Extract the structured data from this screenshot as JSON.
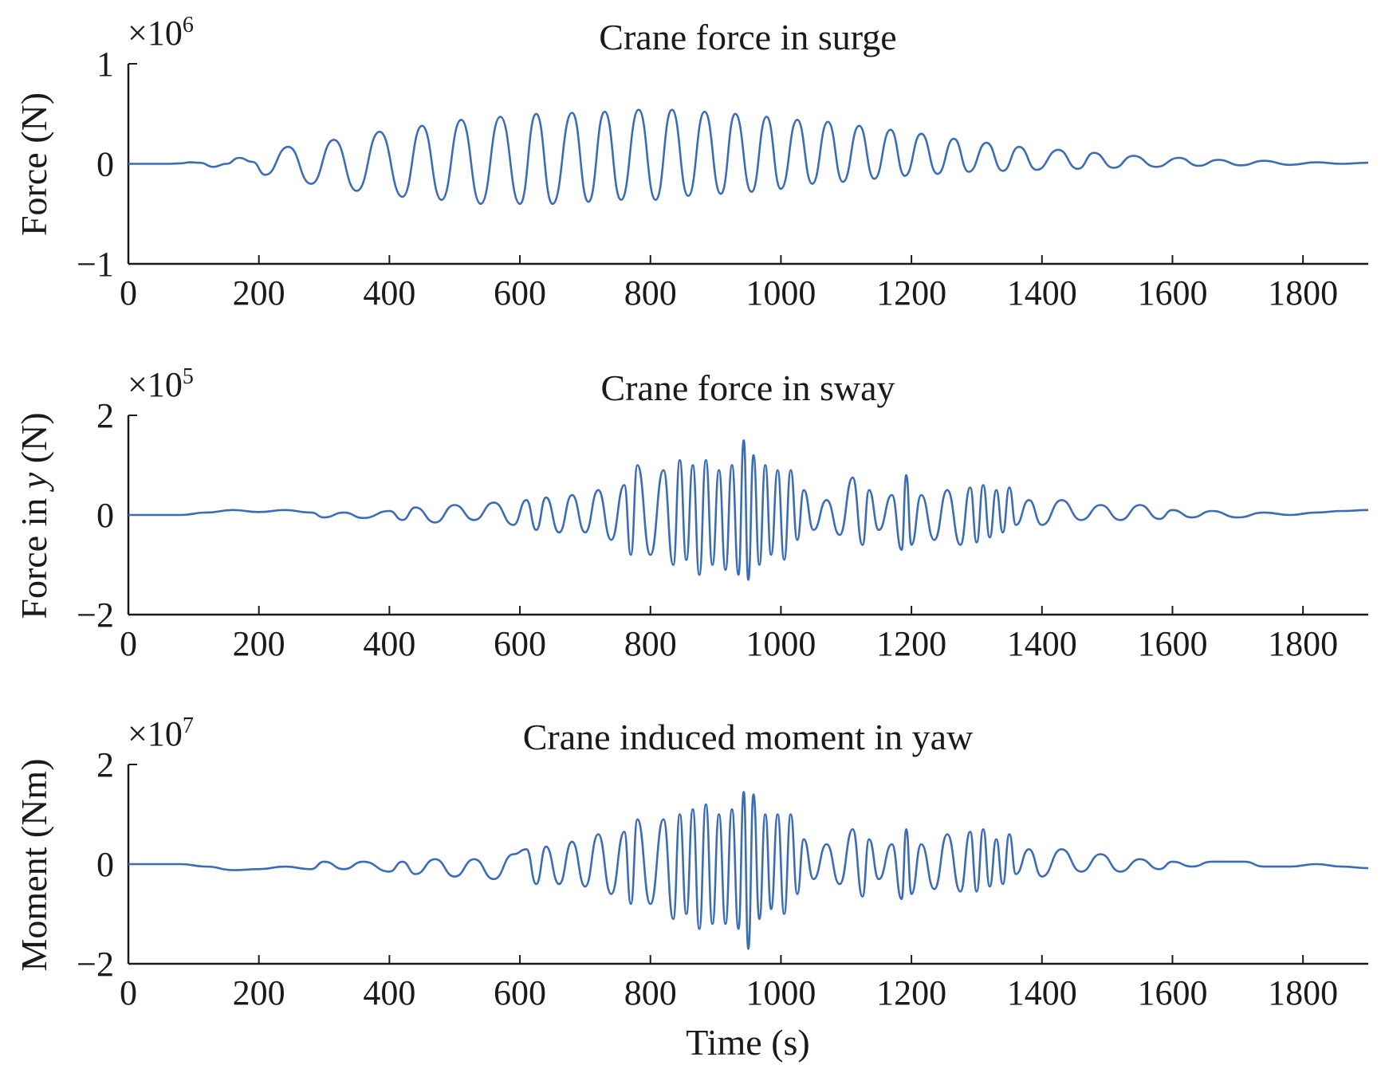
{
  "colors": {
    "series": "#3c6db4",
    "axis": "#1a1a1a"
  },
  "chart_data": [
    {
      "type": "line",
      "title": "Crane force in surge",
      "ylabel": "Force (N)",
      "xlabel": "",
      "multiplier_base": "×10",
      "multiplier_exp": "6",
      "xlim": [
        0,
        1900
      ],
      "ylim": [
        -1,
        1
      ],
      "xticks": [
        "0",
        "200",
        "400",
        "600",
        "800",
        "1000",
        "1200",
        "1400",
        "1600",
        "1800"
      ],
      "yticks": [
        "−1",
        "0",
        "1"
      ],
      "series": [
        {
          "x": [
            0,
            60,
            80,
            95,
            110,
            130,
            150,
            170,
            190,
            210,
            245,
            280,
            315,
            350,
            385,
            420,
            450,
            480,
            510,
            540,
            570,
            600,
            625,
            650,
            680,
            705,
            730,
            755,
            782,
            808,
            833,
            858,
            883,
            908,
            930,
            955,
            978,
            1000,
            1025,
            1048,
            1072,
            1095,
            1120,
            1143,
            1168,
            1190,
            1215,
            1240,
            1265,
            1288,
            1315,
            1340,
            1365,
            1392,
            1425,
            1455,
            1480,
            1510,
            1540,
            1575,
            1610,
            1640,
            1670,
            1705,
            1740,
            1780,
            1820,
            1860,
            1900
          ],
          "y": [
            0,
            0,
            0.005,
            0.015,
            0.01,
            -0.03,
            0,
            0.06,
            0.02,
            -0.11,
            0.17,
            -0.2,
            0.24,
            -0.27,
            0.32,
            -0.33,
            0.38,
            -0.36,
            0.44,
            -0.4,
            0.47,
            -0.4,
            0.5,
            -0.4,
            0.51,
            -0.38,
            0.52,
            -0.36,
            0.54,
            -0.36,
            0.54,
            -0.32,
            0.52,
            -0.3,
            0.5,
            -0.28,
            0.47,
            -0.25,
            0.44,
            -0.2,
            0.42,
            -0.18,
            0.38,
            -0.15,
            0.34,
            -0.12,
            0.3,
            -0.1,
            0.25,
            -0.08,
            0.21,
            -0.07,
            0.17,
            -0.06,
            0.14,
            -0.05,
            0.11,
            -0.04,
            0.08,
            -0.03,
            0.06,
            -0.02,
            0.04,
            -0.015,
            0.03,
            -0.01,
            0.015,
            0,
            0.01
          ]
        }
      ]
    },
    {
      "type": "line",
      "title": "Crane force in sway",
      "ylabel": "Force in y (N)",
      "xlabel": "",
      "multiplier_base": "×10",
      "multiplier_exp": "5",
      "xlim": [
        0,
        1900
      ],
      "ylim": [
        -2,
        2
      ],
      "xticks": [
        "0",
        "200",
        "400",
        "600",
        "800",
        "1000",
        "1200",
        "1400",
        "1600",
        "1800"
      ],
      "yticks": [
        "−2",
        "0",
        "2"
      ],
      "series": [
        {
          "x": [
            0,
            80,
            120,
            160,
            200,
            240,
            280,
            300,
            330,
            360,
            400,
            420,
            440,
            470,
            500,
            530,
            560,
            590,
            610,
            625,
            640,
            660,
            680,
            700,
            720,
            740,
            760,
            770,
            780,
            800,
            820,
            835,
            845,
            855,
            865,
            875,
            885,
            895,
            905,
            915,
            925,
            935,
            943,
            950,
            958,
            967,
            976,
            985,
            995,
            1005,
            1015,
            1025,
            1035,
            1050,
            1070,
            1090,
            1110,
            1125,
            1135,
            1150,
            1170,
            1185,
            1192,
            1200,
            1215,
            1235,
            1255,
            1275,
            1290,
            1300,
            1310,
            1320,
            1330,
            1340,
            1350,
            1360,
            1380,
            1400,
            1430,
            1460,
            1490,
            1520,
            1550,
            1580,
            1600,
            1630,
            1660,
            1700,
            1740,
            1780,
            1820,
            1860,
            1900
          ],
          "y": [
            0,
            0,
            0.05,
            0.1,
            0.06,
            0.1,
            0.05,
            -0.05,
            0.05,
            -0.06,
            0.08,
            -0.1,
            0.15,
            -0.15,
            0.2,
            -0.1,
            0.25,
            -0.2,
            0.3,
            -0.3,
            0.35,
            -0.35,
            0.4,
            -0.35,
            0.5,
            -0.5,
            0.6,
            -0.8,
            1.0,
            -0.8,
            0.9,
            -1.0,
            1.1,
            -0.9,
            1.0,
            -1.2,
            1.1,
            -1.0,
            0.9,
            -1.1,
            1.0,
            -1.2,
            1.5,
            -1.3,
            1.2,
            -1.0,
            1.0,
            -0.8,
            0.9,
            -0.9,
            0.9,
            -0.5,
            0.5,
            -0.3,
            0.3,
            -0.4,
            0.75,
            -0.6,
            0.5,
            -0.3,
            0.4,
            -0.7,
            0.8,
            -0.6,
            0.4,
            -0.5,
            0.5,
            -0.6,
            0.55,
            -0.55,
            0.6,
            -0.45,
            0.5,
            -0.35,
            0.55,
            -0.2,
            0.3,
            -0.2,
            0.3,
            -0.1,
            0.2,
            -0.1,
            0.2,
            -0.08,
            0.1,
            -0.05,
            0.08,
            -0.05,
            0.05,
            0,
            0.05,
            0.08,
            0.1
          ]
        }
      ]
    },
    {
      "type": "line",
      "title": "Crane induced moment in yaw",
      "ylabel": "Moment (Nm)",
      "xlabel": "Time (s)",
      "multiplier_base": "×10",
      "multiplier_exp": "7",
      "xlim": [
        0,
        1900
      ],
      "ylim": [
        -2,
        2
      ],
      "xticks": [
        "0",
        "200",
        "400",
        "600",
        "800",
        "1000",
        "1200",
        "1400",
        "1600",
        "1800"
      ],
      "yticks": [
        "−2",
        "0",
        "2"
      ],
      "series": [
        {
          "x": [
            0,
            80,
            120,
            160,
            200,
            240,
            280,
            300,
            330,
            360,
            400,
            420,
            440,
            470,
            500,
            530,
            560,
            590,
            610,
            625,
            640,
            660,
            680,
            700,
            720,
            740,
            760,
            770,
            780,
            800,
            820,
            835,
            845,
            855,
            865,
            875,
            885,
            895,
            905,
            915,
            925,
            935,
            943,
            950,
            958,
            967,
            976,
            985,
            995,
            1005,
            1015,
            1025,
            1035,
            1050,
            1070,
            1090,
            1110,
            1125,
            1135,
            1150,
            1170,
            1185,
            1192,
            1200,
            1215,
            1235,
            1255,
            1275,
            1290,
            1300,
            1310,
            1320,
            1330,
            1340,
            1350,
            1360,
            1380,
            1400,
            1430,
            1460,
            1490,
            1520,
            1550,
            1580,
            1600,
            1630,
            1660,
            1710,
            1740,
            1780,
            1820,
            1860,
            1900
          ],
          "y": [
            0,
            0,
            -0.05,
            -0.12,
            -0.1,
            -0.05,
            -0.1,
            0.05,
            -0.1,
            0.05,
            -0.15,
            0.05,
            -0.2,
            0.1,
            -0.25,
            0.1,
            -0.3,
            0.2,
            0.3,
            -0.4,
            0.35,
            -0.4,
            0.45,
            -0.45,
            0.6,
            -0.6,
            0.65,
            -0.8,
            0.9,
            -0.8,
            0.9,
            -1.1,
            1.0,
            -1.0,
            1.1,
            -1.3,
            1.2,
            -1.2,
            1.0,
            -1.2,
            1.1,
            -1.3,
            1.45,
            -1.7,
            1.4,
            -1.1,
            1.0,
            -0.9,
            1.0,
            -1.0,
            1.0,
            -0.6,
            0.5,
            -0.3,
            0.4,
            -0.4,
            0.7,
            -0.65,
            0.5,
            -0.3,
            0.4,
            -0.7,
            0.7,
            -0.6,
            0.4,
            -0.5,
            0.6,
            -0.55,
            0.65,
            -0.55,
            0.7,
            -0.45,
            0.5,
            -0.4,
            0.6,
            -0.2,
            0.3,
            -0.25,
            0.3,
            -0.15,
            0.2,
            -0.15,
            0.1,
            -0.1,
            0.05,
            -0.05,
            0.05,
            0.05,
            -0.05,
            -0.05,
            0,
            -0.05,
            -0.08
          ]
        }
      ]
    }
  ]
}
